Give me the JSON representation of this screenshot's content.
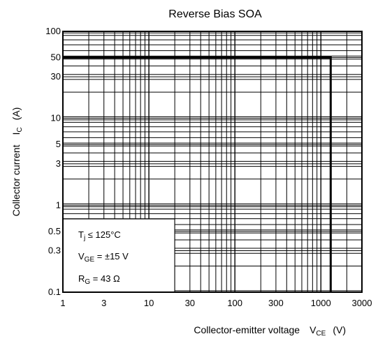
{
  "chart_data": {
    "type": "line",
    "title": "Reverse Bias SOA",
    "xlabel": "Collector-emitter voltage",
    "xlabel_symbol": "V",
    "xlabel_symbol_sub": "CE",
    "xlabel_unit": "(V)",
    "ylabel": "Collector current",
    "ylabel_symbol": "I",
    "ylabel_symbol_sub": "C",
    "ylabel_unit": "(A)",
    "x_scale": "log",
    "y_scale": "log",
    "xlim": [
      1,
      3000
    ],
    "ylim": [
      0.1,
      100
    ],
    "x_ticks": [
      1,
      3,
      10,
      30,
      100,
      300,
      1000,
      3000
    ],
    "x_tick_labels": [
      "1",
      "3",
      "10",
      "30",
      "100",
      "300",
      "1000",
      "3000"
    ],
    "y_ticks": [
      0.1,
      0.3,
      0.5,
      1,
      3,
      5,
      10,
      30,
      50,
      100
    ],
    "y_tick_labels": [
      "0.1",
      "0.3",
      "0.5",
      "1",
      "3",
      "5",
      "10",
      "30",
      "50",
      "100"
    ],
    "grid": true,
    "series": [
      {
        "x": [
          1,
          1300,
          1300
        ],
        "y": [
          50,
          50,
          0.1
        ]
      }
    ],
    "annotations": {
      "tj": {
        "main": "T",
        "sub": "j",
        "rest": " ≤ 125°C"
      },
      "vge": {
        "main": "V",
        "sub": "GE",
        "rest": " = ±15 V"
      },
      "rg": {
        "main": "R",
        "sub": "G",
        "rest": " = 43 Ω"
      }
    }
  }
}
